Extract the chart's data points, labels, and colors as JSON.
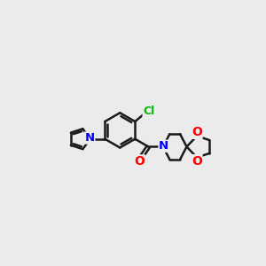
{
  "bg_color": "#ebebeb",
  "bond_color": "#1a1a1a",
  "bond_width": 1.8,
  "atom_colors": {
    "N": "#0000ff",
    "O": "#ff0000",
    "Cl": "#00bb00",
    "C": "#1a1a1a"
  },
  "bx": 4.2,
  "by": 5.2,
  "ring_r": 0.85
}
